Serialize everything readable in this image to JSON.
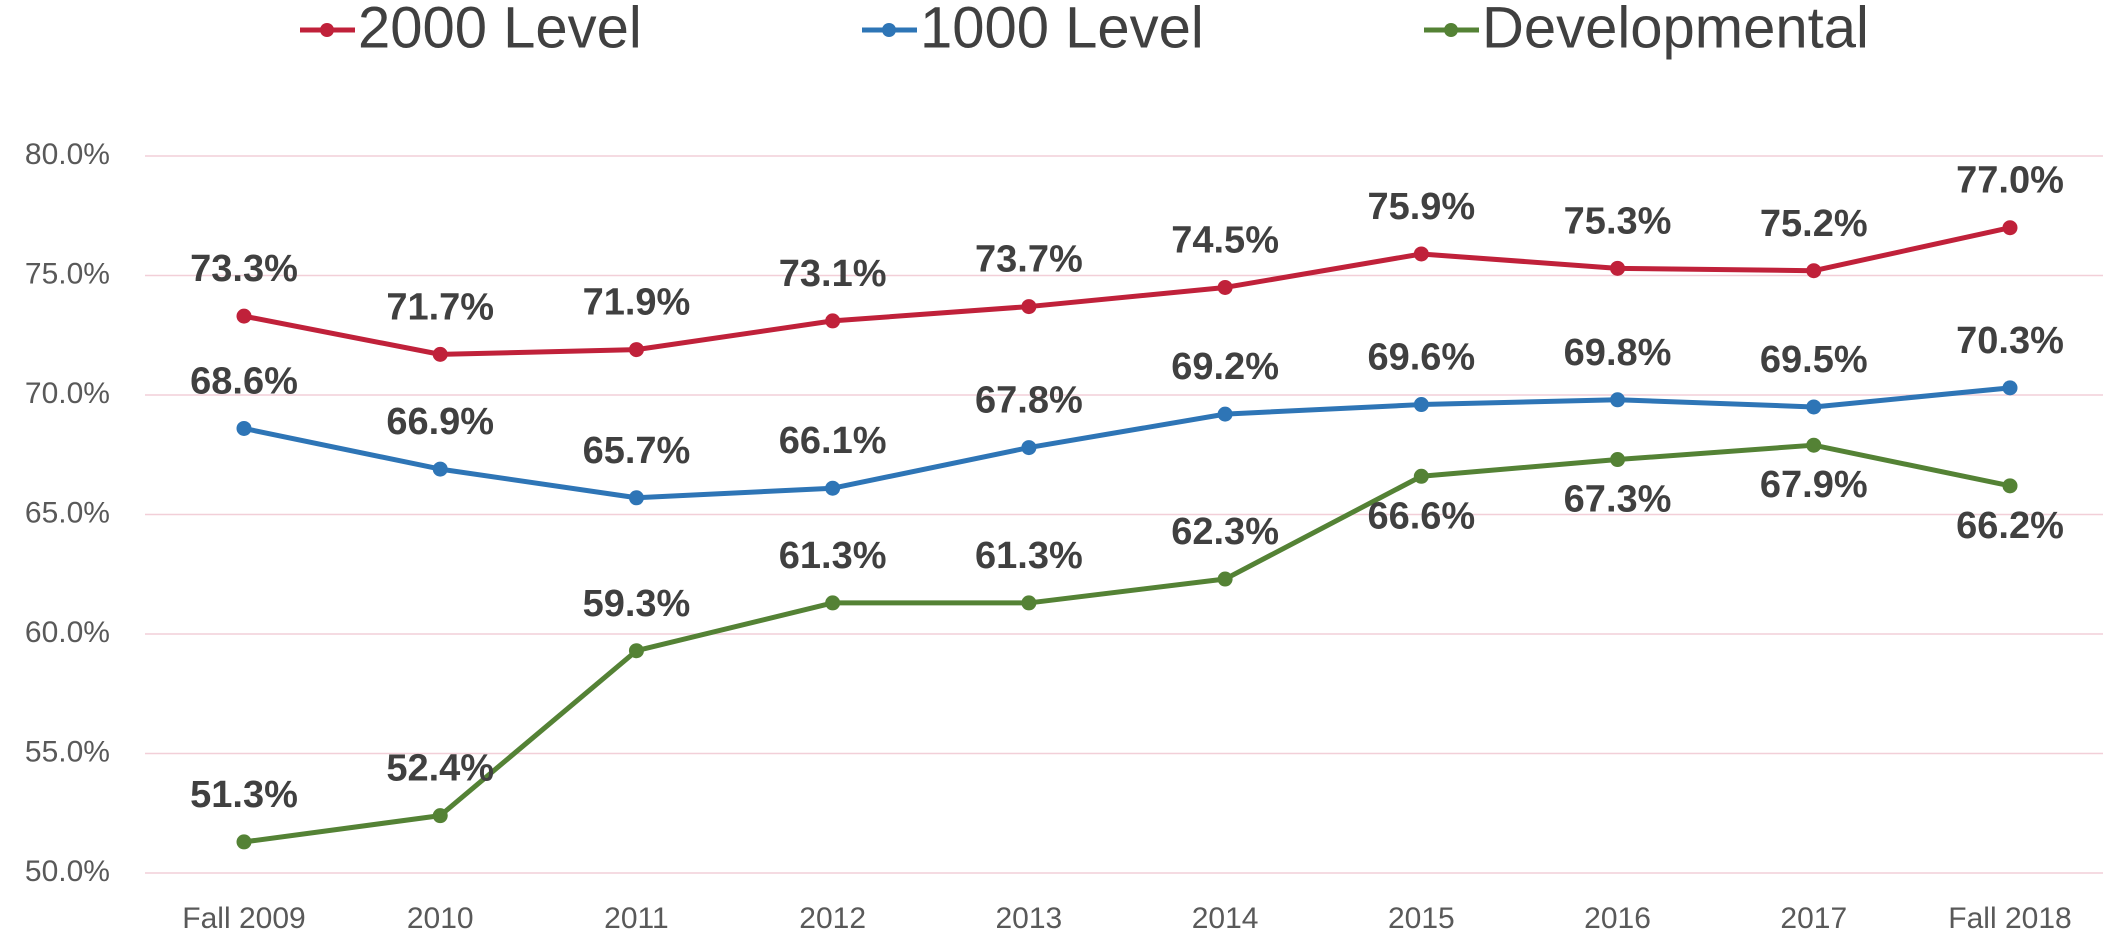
{
  "chart_data": {
    "type": "line",
    "categories": [
      "Fall 2009",
      "2010",
      "2011",
      "2012",
      "2013",
      "2014",
      "2015",
      "2016",
      "2017",
      "Fall 2018"
    ],
    "series": [
      {
        "name": "2000 Level",
        "color": "#c0213a",
        "values": [
          73.3,
          71.7,
          71.9,
          73.1,
          73.7,
          74.5,
          75.9,
          75.3,
          75.2,
          77.0
        ],
        "value_labels": [
          "73.3%",
          "71.7%",
          "71.9%",
          "73.1%",
          "73.7%",
          "74.5%",
          "75.9%",
          "75.3%",
          "75.2%",
          "77.0%"
        ]
      },
      {
        "name": "1000 Level",
        "color": "#2e75b6",
        "values": [
          68.6,
          66.9,
          65.7,
          66.1,
          67.8,
          69.2,
          69.6,
          69.8,
          69.5,
          70.3
        ],
        "value_labels": [
          "68.6%",
          "66.9%",
          "65.7%",
          "66.1%",
          "67.8%",
          "69.2%",
          "69.6%",
          "69.8%",
          "69.5%",
          "70.3%"
        ]
      },
      {
        "name": "Developmental",
        "color": "#548235",
        "values": [
          51.3,
          52.4,
          59.3,
          61.3,
          61.3,
          62.3,
          66.6,
          67.3,
          67.9,
          66.2
        ],
        "value_labels": [
          "51.3%",
          "52.4%",
          "59.3%",
          "61.3%",
          "61.3%",
          "62.3%",
          "66.6%",
          "67.3%",
          "67.9%",
          "66.2%"
        ]
      }
    ],
    "ylim": [
      50,
      80
    ],
    "yticks": [
      {
        "value": 50,
        "label": "50.0%"
      },
      {
        "value": 55,
        "label": "55.0%"
      },
      {
        "value": 60,
        "label": "60.0%"
      },
      {
        "value": 65,
        "label": "65.0%"
      },
      {
        "value": 70,
        "label": "70.0%"
      },
      {
        "value": 75,
        "label": "75.0%"
      },
      {
        "value": 80,
        "label": "80.0%"
      }
    ],
    "grid": true,
    "legend": "top"
  }
}
